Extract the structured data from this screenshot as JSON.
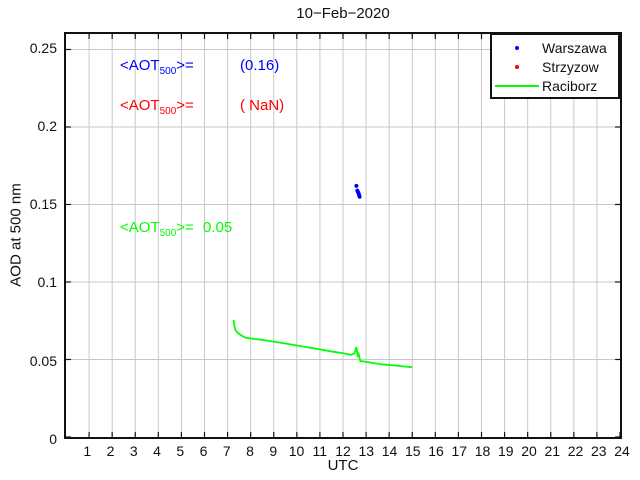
{
  "chart_data": {
    "type": "line",
    "title": "10−Feb−2020",
    "xlabel": "UTC",
    "ylabel": "AOD at 500 nm",
    "xlim": [
      0,
      24
    ],
    "ylim": [
      0,
      0.26
    ],
    "x_ticks": [
      1,
      2,
      3,
      4,
      5,
      6,
      7,
      8,
      9,
      10,
      11,
      12,
      13,
      14,
      15,
      16,
      17,
      18,
      19,
      20,
      21,
      22,
      23,
      24
    ],
    "y_ticks": [
      0,
      0.05,
      0.1,
      0.15,
      0.2,
      0.25
    ],
    "y_tick_labels": [
      "0",
      "0.05",
      "0.1",
      "0.15",
      "0.2",
      "0.25"
    ],
    "grid": true,
    "grid_color": "#c8c8c8",
    "axis_color": "#111111",
    "legend_position": "top-right",
    "series": [
      {
        "name": "Warszawa",
        "type": "scatter",
        "color": "#0000ff",
        "points": [
          [
            12.58,
            0.162
          ],
          [
            12.62,
            0.159
          ],
          [
            12.65,
            0.158
          ],
          [
            12.68,
            0.157
          ],
          [
            12.7,
            0.156
          ],
          [
            12.72,
            0.155
          ]
        ]
      },
      {
        "name": "Strzyzow",
        "type": "scatter",
        "color": "#ff0000",
        "points": []
      },
      {
        "name": "Raciborz",
        "type": "line",
        "color": "#00ff00",
        "points": [
          [
            7.26,
            0.0755
          ],
          [
            7.3,
            0.071
          ],
          [
            7.36,
            0.0685
          ],
          [
            7.46,
            0.067
          ],
          [
            7.6,
            0.0655
          ],
          [
            7.78,
            0.064
          ],
          [
            8.2,
            0.0632
          ],
          [
            8.6,
            0.0624
          ],
          [
            9.0,
            0.0615
          ],
          [
            9.5,
            0.0603
          ],
          [
            10.0,
            0.059
          ],
          [
            10.5,
            0.0578
          ],
          [
            11.0,
            0.0565
          ],
          [
            11.5,
            0.0552
          ],
          [
            12.0,
            0.054
          ],
          [
            12.35,
            0.053
          ],
          [
            12.5,
            0.054
          ],
          [
            12.58,
            0.058
          ],
          [
            12.64,
            0.0525
          ],
          [
            12.68,
            0.0535
          ],
          [
            12.75,
            0.049
          ],
          [
            12.9,
            0.0487
          ],
          [
            13.2,
            0.048
          ],
          [
            13.6,
            0.047
          ],
          [
            14.0,
            0.0465
          ],
          [
            14.5,
            0.0457
          ],
          [
            15.0,
            0.045
          ]
        ]
      }
    ],
    "annotations": [
      {
        "pre": "<AOT",
        "sub": "500",
        "post": ">=",
        "value": "(0.16)",
        "color": "#0000ff"
      },
      {
        "pre": "<AOT",
        "sub": "500",
        "post": ">=",
        "value": "( NaN)",
        "color": "#ff0000"
      },
      {
        "pre": "<AOT",
        "sub": "500",
        "post": ">=",
        "value": "0.05",
        "color": "#00ff00"
      }
    ]
  }
}
